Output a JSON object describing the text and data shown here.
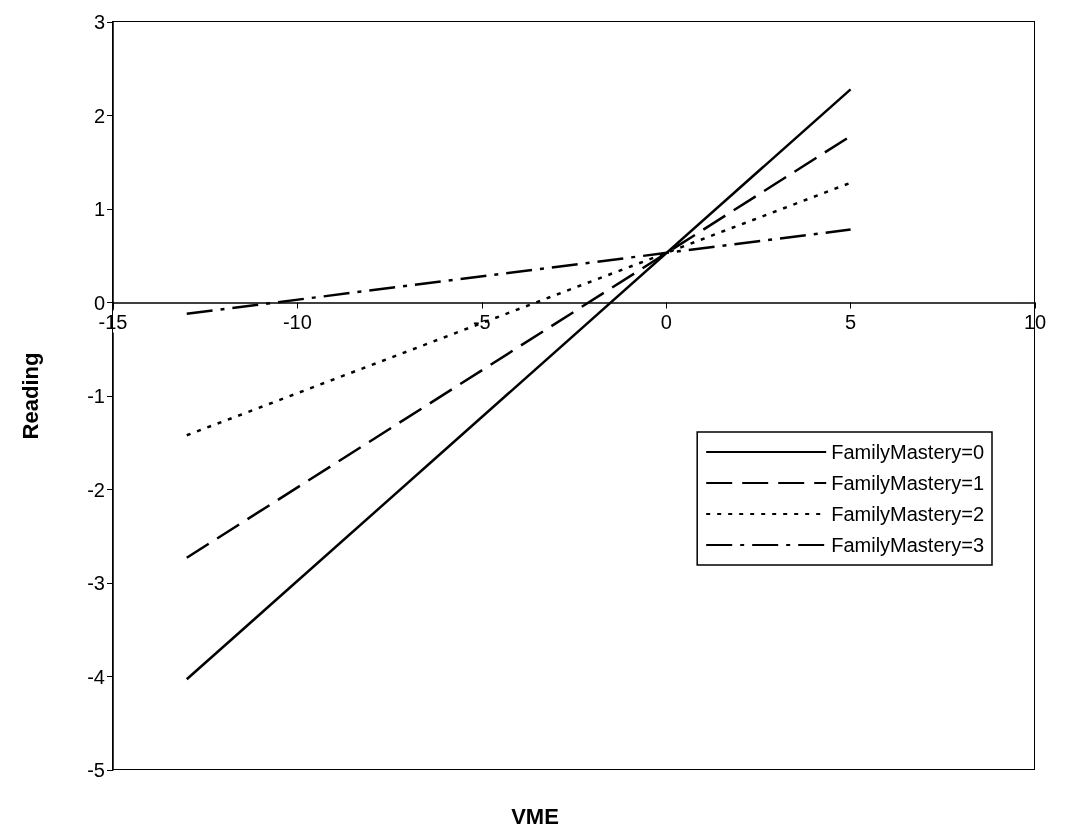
{
  "chart_data": {
    "type": "line",
    "xlabel": "VME",
    "ylabel": "Reading",
    "xlim": [
      -15,
      10
    ],
    "xticks": [
      -15,
      -10,
      -5,
      0,
      5,
      10
    ],
    "ylim": [
      -5,
      3
    ],
    "yticks": [
      -5,
      -4,
      -3,
      -2,
      -1,
      0,
      1,
      2,
      3
    ],
    "x": [
      -13,
      5
    ],
    "series": [
      {
        "name": "FamilyMastery=0",
        "color": "#000000",
        "line_style": "solid",
        "values": [
          -4.03,
          2.28
        ]
      },
      {
        "name": "FamilyMastery=1",
        "color": "#000000",
        "line_style": "dashed",
        "values": [
          -2.73,
          1.78
        ]
      },
      {
        "name": "FamilyMastery=2",
        "color": "#000000",
        "line_style": "dotted",
        "values": [
          -1.42,
          1.28
        ]
      },
      {
        "name": "FamilyMastery=3",
        "color": "#000000",
        "line_style": "dashdot",
        "values": [
          -0.12,
          0.78
        ]
      }
    ],
    "marker": "none",
    "grid": false,
    "legend": "bottom right"
  }
}
